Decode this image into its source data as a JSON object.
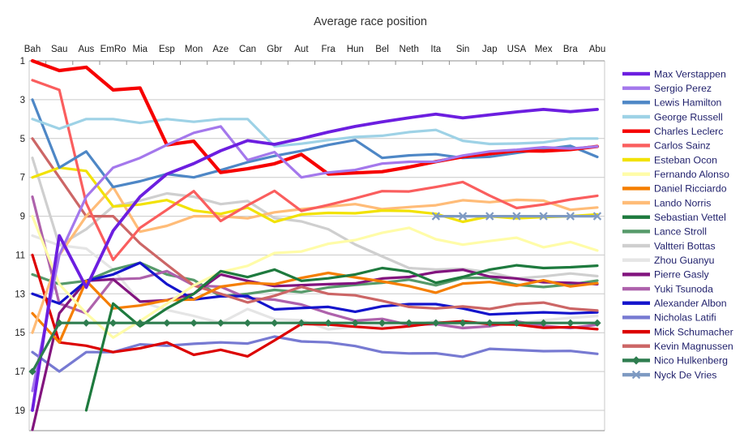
{
  "title": "Average race position",
  "chart_data": {
    "type": "line",
    "title": "Average race position",
    "x_axis_position": "top",
    "x_categories": [
      "Bah",
      "Sau",
      "Aus",
      "EmRo",
      "Mia",
      "Esp",
      "Mon",
      "Aze",
      "Can",
      "Gbr",
      "Aut",
      "Fra",
      "Hun",
      "Bel",
      "Neth",
      "Ita",
      "Sin",
      "Jap",
      "USA",
      "Mex",
      "Bra",
      "Abu"
    ],
    "y_ticks": [
      1,
      3,
      5,
      7,
      9,
      11,
      13,
      15,
      17,
      19
    ],
    "y_range": [
      1,
      20
    ],
    "y_inverted": true,
    "grid": "horizontal",
    "legend_position": "right",
    "series": [
      {
        "name": "Max Verstappen",
        "color": "#6C1EE0",
        "marker": null,
        "values": [
          19,
          10,
          12.67,
          9.75,
          8,
          6.83,
          6.29,
          5.63,
          5.11,
          5.3,
          5,
          4.67,
          4.38,
          4.14,
          3.93,
          3.75,
          3.94,
          3.78,
          3.63,
          3.5,
          3.62,
          3.5
        ]
      },
      {
        "name": "Sergio Perez",
        "color": "#A478EC",
        "marker": null,
        "values": [
          18,
          11,
          8,
          6.5,
          6,
          5.33,
          4.71,
          4.38,
          6.11,
          5.7,
          7,
          6.75,
          6.62,
          6.29,
          6.2,
          6.19,
          5.88,
          5.67,
          5.58,
          5.45,
          5.52,
          5.41
        ]
      },
      {
        "name": "Lewis Hamilton",
        "color": "#4E87C6",
        "marker": null,
        "values": [
          3,
          6.5,
          5.67,
          7.5,
          7.2,
          6.83,
          7,
          6.63,
          6.22,
          5.9,
          5.64,
          5.33,
          5.08,
          6,
          5.87,
          5.81,
          6,
          5.94,
          5.74,
          5.55,
          5.38,
          5.95
        ]
      },
      {
        "name": "George Russell",
        "color": "#9ED2E6",
        "marker": null,
        "values": [
          4,
          4.5,
          4,
          4,
          4.2,
          4,
          4.14,
          4,
          4,
          5.4,
          5.27,
          5.08,
          4.92,
          4.86,
          4.67,
          4.56,
          5.12,
          5.28,
          5.26,
          5.2,
          5,
          5
        ]
      },
      {
        "name": "Charles Leclerc",
        "color": "#F60000",
        "marker": null,
        "values": [
          1,
          1.5,
          1.33,
          2.5,
          2.4,
          5.33,
          5.14,
          6.75,
          6.56,
          6.3,
          5.82,
          6.83,
          6.77,
          6.71,
          6.47,
          6.19,
          5.94,
          5.78,
          5.63,
          5.65,
          5.57,
          5.41
        ]
      },
      {
        "name": "Carlos Sainz",
        "color": "#FA5E5E",
        "marker": null,
        "values": [
          2,
          2.5,
          8.33,
          11.25,
          9.6,
          8.67,
          7.71,
          9.25,
          8.44,
          7.7,
          8.73,
          8.42,
          8.08,
          7.71,
          7.73,
          7.5,
          7.24,
          7.94,
          8.58,
          8.4,
          8.14,
          7.95
        ]
      },
      {
        "name": "Esteban Ocon",
        "color": "#F2E204",
        "marker": null,
        "values": [
          7,
          6.5,
          6.67,
          8.5,
          8.4,
          8.17,
          8.71,
          8.88,
          8.56,
          9.3,
          8.91,
          8.83,
          8.85,
          8.71,
          8.73,
          8.88,
          9.29,
          9,
          9.11,
          9.05,
          9,
          8.91
        ]
      },
      {
        "name": "Fernando Alonso",
        "color": "#FFFCA8",
        "marker": null,
        "values": [
          9,
          12.5,
          14,
          15.25,
          14.4,
          13.5,
          12.57,
          11.88,
          11.56,
          10.9,
          10.82,
          10.42,
          10.23,
          9.86,
          9.6,
          10.19,
          10.47,
          10.28,
          10.11,
          10.6,
          10.33,
          10.77
        ]
      },
      {
        "name": "Daniel Ricciardo",
        "color": "#F57E00",
        "marker": null,
        "values": [
          14,
          15.5,
          12.33,
          13.75,
          13.6,
          13.33,
          13.29,
          12.63,
          12.44,
          12.5,
          12.18,
          11.92,
          12.15,
          12.36,
          12.6,
          12.94,
          12.47,
          12.39,
          12.58,
          12.3,
          12.62,
          12.45
        ]
      },
      {
        "name": "Lando Norris",
        "color": "#FFBC78",
        "marker": null,
        "values": [
          15,
          11,
          9,
          7.5,
          9.8,
          9.5,
          9,
          9,
          9.11,
          8.8,
          8.64,
          8.5,
          8.38,
          8.64,
          8.53,
          8.44,
          8.18,
          8.28,
          8.16,
          8.2,
          8.67,
          8.55
        ]
      },
      {
        "name": "Sebastian Vettel",
        "color": "#1E7A3E",
        "marker": null,
        "values": [
          null,
          null,
          19,
          13.5,
          14.67,
          13.75,
          13,
          11.83,
          12.14,
          11.75,
          12.33,
          12.2,
          12,
          11.67,
          11.85,
          12.43,
          12.13,
          11.75,
          11.53,
          11.67,
          11.63,
          11.55
        ]
      },
      {
        "name": "Lance Stroll",
        "color": "#569A6A",
        "marker": null,
        "values": [
          12,
          12.5,
          12.33,
          11.75,
          11.4,
          12,
          12.29,
          13.13,
          13,
          12.8,
          12.91,
          12.67,
          12.54,
          12.43,
          12.27,
          12.56,
          12.18,
          12.17,
          12.53,
          12.65,
          12.52,
          12.32
        ]
      },
      {
        "name": "Valtteri Bottas",
        "color": "#CFCFCF",
        "marker": null,
        "values": [
          6,
          10.5,
          9.67,
          8.5,
          8.2,
          7.83,
          8,
          8.38,
          8.22,
          9.1,
          9.27,
          9.67,
          10.46,
          11.07,
          11.67,
          11.75,
          11.71,
          11.89,
          12.21,
          12.1,
          11.95,
          12.09
        ]
      },
      {
        "name": "Zhou Guanyu",
        "color": "#E5E5E5",
        "marker": null,
        "values": [
          10,
          10.5,
          10.67,
          11.75,
          13.4,
          13.83,
          14.14,
          14.5,
          13.78,
          14.3,
          14.36,
          14.83,
          14.69,
          14.64,
          14.67,
          14.38,
          14.71,
          14.67,
          14.53,
          14.35,
          14.24,
          14.14
        ]
      },
      {
        "name": "Pierre Gasly",
        "color": "#82147E",
        "marker": null,
        "values": [
          20,
          14,
          12.33,
          12.25,
          13.4,
          13.33,
          13,
          12,
          12.33,
          12.6,
          12.55,
          12.5,
          12.46,
          12.21,
          12.13,
          11.88,
          11.76,
          12.11,
          12.21,
          12.4,
          12.43,
          12.5
        ]
      },
      {
        "name": "Yuki Tsunoda",
        "color": "#AE62AC",
        "marker": null,
        "values": [
          8,
          13.5,
          14,
          12.25,
          12.2,
          11.83,
          12.57,
          12.63,
          13.22,
          13.3,
          13.55,
          14,
          14.38,
          14.29,
          14.6,
          14.56,
          14.76,
          14.67,
          14.42,
          14.65,
          14.76,
          14.59
        ]
      },
      {
        "name": "Alexander Albon",
        "color": "#1414CC",
        "marker": null,
        "values": [
          13,
          13.5,
          12.33,
          12,
          11.4,
          12.5,
          13.29,
          13.13,
          13.11,
          13.8,
          13.73,
          13.67,
          13.92,
          13.64,
          13.53,
          13.53,
          13.75,
          14.06,
          14,
          13.95,
          14,
          13.95
        ]
      },
      {
        "name": "Nicholas Latifi",
        "color": "#777AD2",
        "marker": null,
        "values": [
          16,
          17,
          16,
          16,
          15.6,
          15.67,
          15.57,
          15.5,
          15.56,
          15.2,
          15.45,
          15.5,
          15.69,
          16,
          16.07,
          16.06,
          16.24,
          15.83,
          15.89,
          15.95,
          15.94,
          16.09
        ]
      },
      {
        "name": "Mick Schumacher",
        "color": "#DC0000",
        "marker": null,
        "values": [
          11,
          15.5,
          15.67,
          16,
          15.8,
          15.5,
          16.14,
          15.88,
          16.22,
          15.4,
          14.55,
          14.58,
          14.69,
          14.79,
          14.67,
          14.5,
          14.41,
          14.56,
          14.58,
          14.75,
          14.71,
          14.82
        ]
      },
      {
        "name": "Kevin Magnussen",
        "color": "#CC6666",
        "marker": null,
        "values": [
          5,
          7,
          9,
          9,
          10.4,
          11.5,
          12.57,
          13,
          13.44,
          13.1,
          12.64,
          13,
          13.08,
          13.36,
          13.67,
          13.75,
          13.65,
          13.78,
          13.53,
          13.45,
          13.76,
          13.86
        ]
      },
      {
        "name": "Nico Hulkenberg",
        "color": "#2E7D4F",
        "marker": "diamond",
        "values": [
          17,
          14.5,
          14.5,
          14.5,
          14.5,
          14.5,
          14.5,
          14.5,
          14.5,
          14.5,
          14.5,
          14.5,
          14.5,
          14.5,
          14.5,
          14.5,
          14.5,
          14.5,
          14.5,
          14.5,
          14.5,
          14.5
        ]
      },
      {
        "name": "Nyck De Vries",
        "color": "#7E9AC2",
        "marker": "x",
        "values": [
          null,
          null,
          null,
          null,
          null,
          null,
          null,
          null,
          null,
          null,
          null,
          null,
          null,
          null,
          null,
          9,
          9,
          9,
          9,
          9,
          9,
          9
        ]
      }
    ]
  },
  "colors": {
    "background": "#ffffff",
    "gridline": "#c9c9c9",
    "axis_line": "#8f8f8f",
    "axis_text": "#1b1b1b",
    "legend_text": "#1f1f6b",
    "title_text": "#333333"
  }
}
